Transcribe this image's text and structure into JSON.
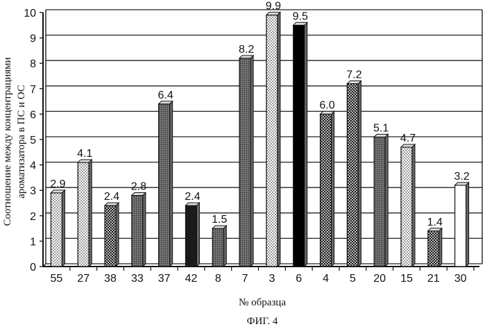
{
  "chart_data": {
    "type": "bar",
    "categories": [
      "55",
      "27",
      "38",
      "33",
      "37",
      "42",
      "8",
      "7",
      "3",
      "6",
      "4",
      "5",
      "20",
      "15",
      "21",
      "30"
    ],
    "values": [
      2.9,
      4.1,
      2.4,
      2.8,
      6.4,
      2.4,
      1.5,
      8.2,
      9.9,
      9.5,
      6.0,
      7.2,
      5.1,
      4.7,
      1.4,
      3.2
    ],
    "value_labels": [
      "2.9",
      "4.1",
      "2.4",
      "2.8",
      "6.4",
      "2.4",
      "1.5",
      "8.2",
      "9.9",
      "9.5",
      "6.0",
      "7.2",
      "5.1",
      "4.7",
      "1.4",
      "3.2"
    ],
    "y_ticks": [
      "0",
      "1",
      "2",
      "3",
      "4",
      "5",
      "6",
      "7",
      "8",
      "9",
      "10"
    ],
    "ylim": [
      0,
      10
    ],
    "xlabel": "№ образца",
    "ylabel": [
      "Соотношение между концентрациями",
      "ароматизатора в ПС и ОС"
    ],
    "grid": true,
    "style": "3d-bars",
    "bar_fills": [
      "dots-light",
      "dots-light",
      "crosshatch",
      "dots-dark",
      "dots-dark",
      "solid-dark",
      "dots-dark",
      "dots-dark",
      "dots-light",
      "solid-black",
      "crosshatch",
      "crosshatch",
      "dots-dark",
      "dots-light",
      "crosshatch",
      "white"
    ]
  },
  "figure": {
    "caption": "ФИГ. 4"
  }
}
